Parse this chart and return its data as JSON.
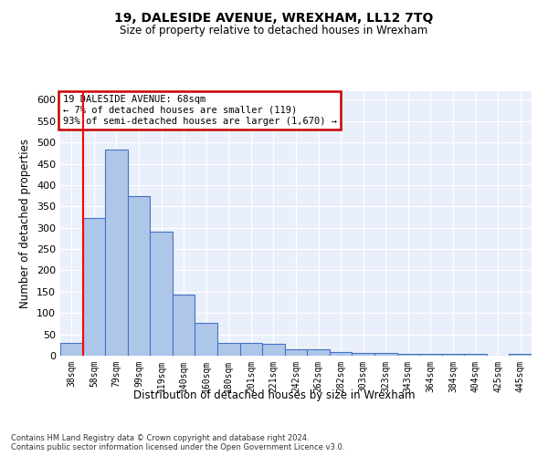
{
  "title": "19, DALESIDE AVENUE, WREXHAM, LL12 7TQ",
  "subtitle": "Size of property relative to detached houses in Wrexham",
  "xlabel": "Distribution of detached houses by size in Wrexham",
  "ylabel": "Number of detached properties",
  "categories": [
    "38sqm",
    "58sqm",
    "79sqm",
    "99sqm",
    "119sqm",
    "140sqm",
    "160sqm",
    "180sqm",
    "201sqm",
    "221sqm",
    "242sqm",
    "262sqm",
    "282sqm",
    "303sqm",
    "323sqm",
    "343sqm",
    "364sqm",
    "384sqm",
    "404sqm",
    "425sqm",
    "445sqm"
  ],
  "values": [
    30,
    322,
    484,
    375,
    290,
    143,
    76,
    31,
    29,
    27,
    16,
    16,
    8,
    6,
    6,
    5,
    5,
    5,
    5,
    0,
    5
  ],
  "bar_color": "#aec6e8",
  "bar_edge_color": "#4472c4",
  "red_line_x": 0.5,
  "annotation_title": "19 DALESIDE AVENUE: 68sqm",
  "annotation_line1": "← 7% of detached houses are smaller (119)",
  "annotation_line2": "93% of semi-detached houses are larger (1,670) →",
  "annotation_box_color": "#ffffff",
  "annotation_box_edge": "#cc0000",
  "ylim": [
    0,
    620
  ],
  "yticks": [
    0,
    50,
    100,
    150,
    200,
    250,
    300,
    350,
    400,
    450,
    500,
    550,
    600
  ],
  "background_color": "#eaf0fb",
  "footer_line1": "Contains HM Land Registry data © Crown copyright and database right 2024.",
  "footer_line2": "Contains public sector information licensed under the Open Government Licence v3.0."
}
